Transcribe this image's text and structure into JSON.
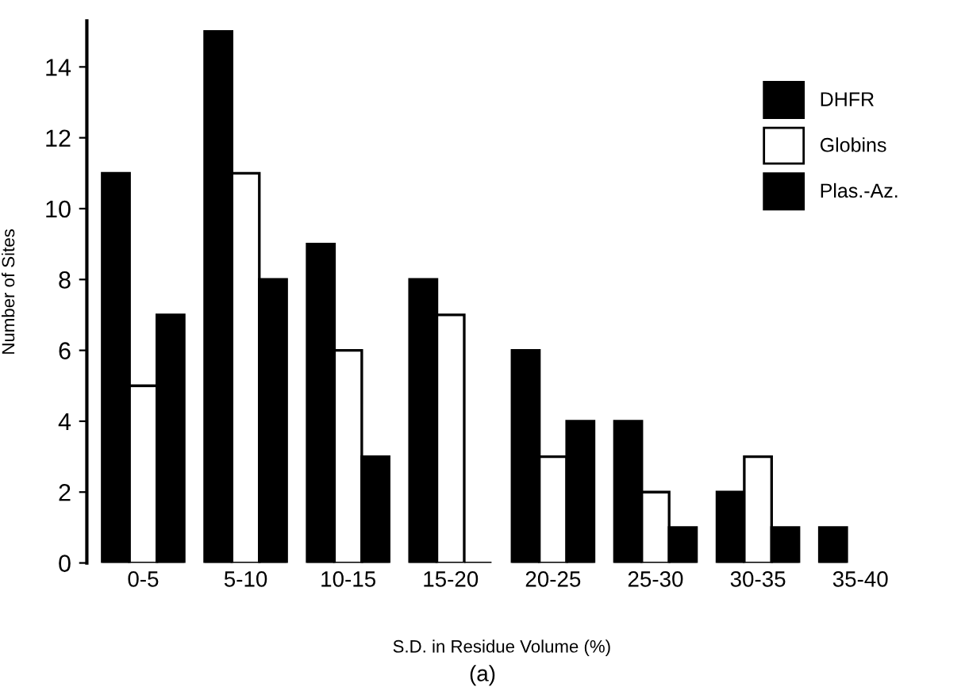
{
  "chart_data": {
    "type": "bar",
    "xlabel": "S.D. in Residue Volume (%)",
    "ylabel": "Number of Sites",
    "categories": [
      "0-5",
      "5-10",
      "10-15",
      "15-20",
      "20-25",
      "25-30",
      "30-35",
      "35-40"
    ],
    "series": [
      {
        "name": "DHFR",
        "color": "#000000",
        "values": [
          11,
          15,
          9,
          8,
          6,
          4,
          2,
          1
        ]
      },
      {
        "name": "Globins",
        "color": "#ffffff",
        "values": [
          5,
          11,
          6,
          7,
          3,
          2,
          3,
          null
        ]
      },
      {
        "name": "Plas.-Az.",
        "color": "#000000",
        "values": [
          7,
          8,
          3,
          0,
          4,
          1,
          1,
          null
        ]
      }
    ],
    "ylim": [
      0,
      15.3
    ],
    "yticks": [
      0,
      2,
      4,
      6,
      8,
      10,
      12,
      14
    ],
    "grid": false,
    "legend": "top right",
    "annotations": [
      "(a)"
    ]
  }
}
